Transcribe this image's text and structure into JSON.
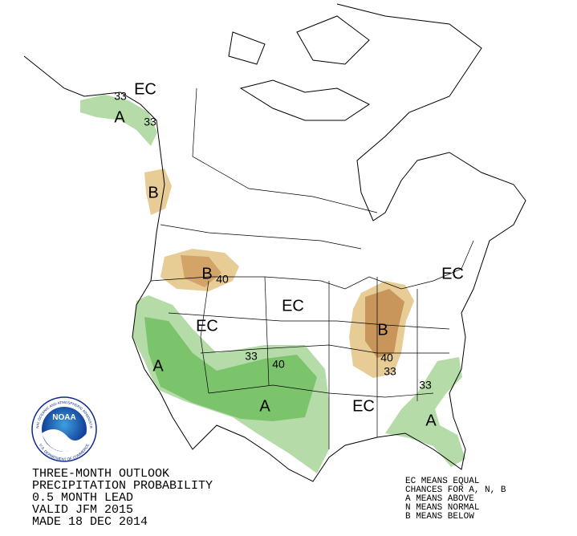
{
  "map": {
    "labels": [
      "EC",
      "33",
      "A",
      "33",
      "B",
      "B",
      "40",
      "EC",
      "EC",
      "33",
      "40",
      "A",
      "A",
      "B",
      "40",
      "33",
      "EC",
      "33",
      "A",
      "EC"
    ]
  },
  "outlook": {
    "lines": [
      "THREE-MONTH OUTLOOK",
      "PRECIPITATION PROBABILITY",
      "0.5 MONTH LEAD",
      "VALID JFM 2015",
      "MADE 18 DEC 2014"
    ]
  },
  "key": {
    "lines": [
      "EC MEANS EQUAL",
      "CHANCES FOR A, N, B",
      "A MEANS ABOVE",
      "N MEANS NORMAL",
      "B MEANS BELOW"
    ]
  },
  "logo": {
    "name": "NOAA",
    "ring_top": "NATIONAL OCEANIC AND ATMOSPHERIC ADMINISTRATION",
    "ring_bottom": "U.S. DEPARTMENT OF COMMERCE"
  }
}
